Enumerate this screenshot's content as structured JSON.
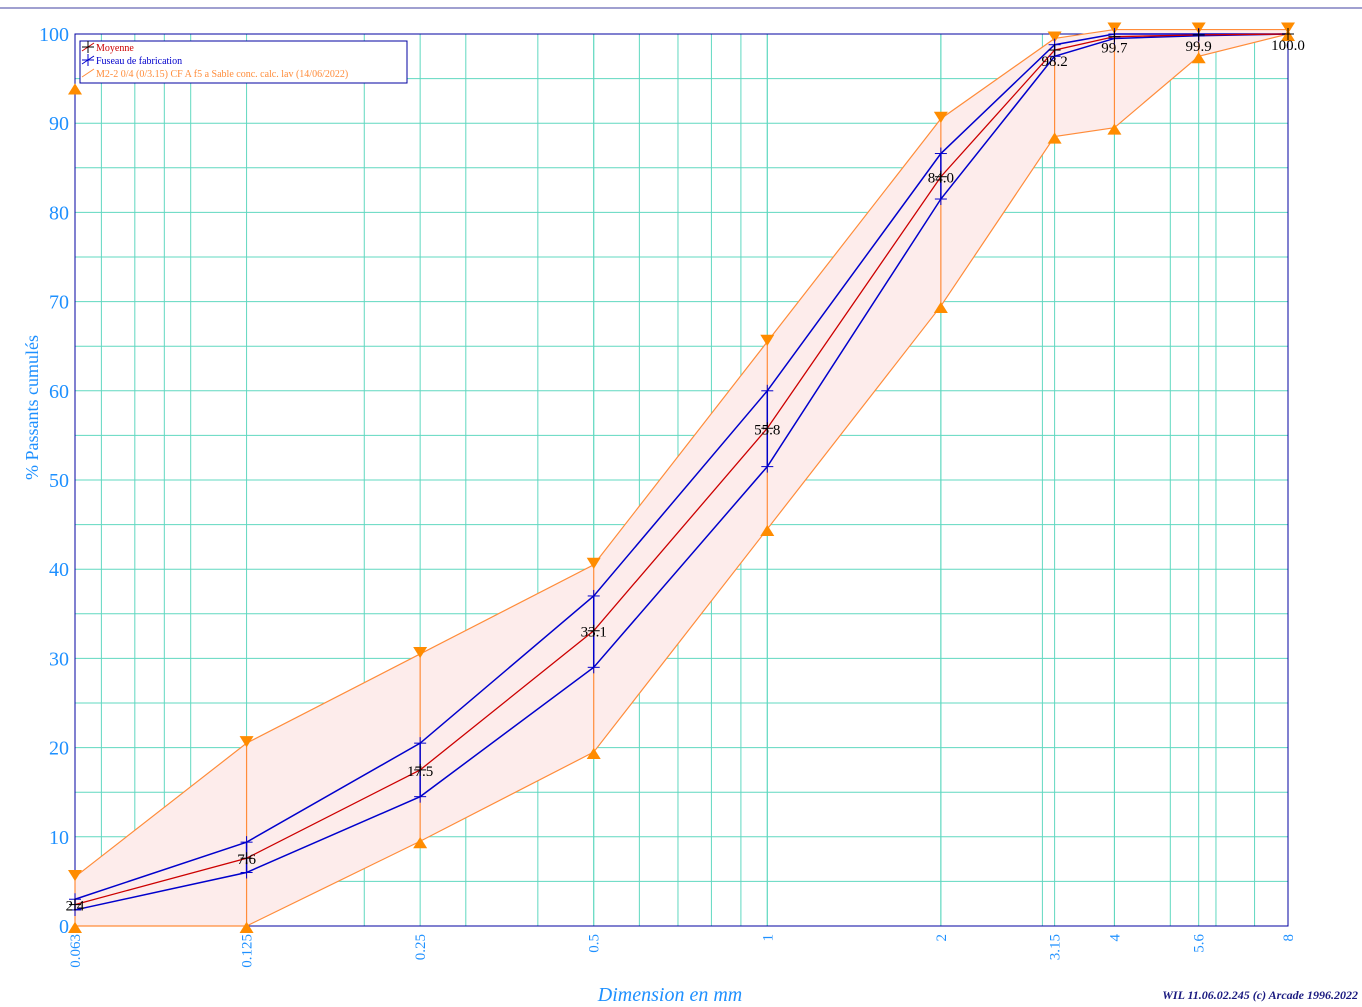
{
  "chart_data": {
    "type": "line",
    "xlabel": "Dimension en mm",
    "ylabel": "% Passants cumulés",
    "x_scale": "log",
    "ylim": [
      0,
      100
    ],
    "yticks": [
      0,
      10,
      20,
      30,
      40,
      50,
      60,
      70,
      80,
      90,
      100
    ],
    "x": [
      0.063,
      0.125,
      0.25,
      0.5,
      1,
      2,
      3.15,
      4,
      5.6,
      8
    ],
    "x_tick_labels": [
      "0.063",
      "0.125",
      "0.25",
      "0.5",
      "1",
      "2",
      "3.15",
      "4",
      "5.6",
      "8"
    ],
    "grid": true,
    "legend_position": "top-left",
    "series": [
      {
        "name": "Moyenne",
        "color": "#cc0000",
        "marker_color": "#000000",
        "values": [
          2.4,
          7.6,
          17.5,
          33.1,
          55.8,
          84.0,
          98.2,
          99.7,
          99.9,
          100.0
        ],
        "data_labels": [
          "2.4",
          "7.6",
          "17.5",
          "33.1",
          "55.8",
          "84.0",
          "98.2",
          "99.7",
          "99.9",
          "100.0"
        ]
      },
      {
        "name": "Fuseau de fabrication",
        "color": "#0000cc",
        "upper": [
          3.0,
          9.4,
          20.5,
          37.0,
          60.0,
          86.6,
          98.8,
          100.0,
          100.0,
          100.0
        ],
        "lower": [
          1.8,
          6.0,
          14.5,
          29.0,
          51.5,
          81.5,
          97.5,
          99.5,
          99.8,
          100.0
        ]
      },
      {
        "name": "M2-2 0/4 (0/3.15) CF A f5 a Sable conc. calc. lav (14/06/2022)",
        "color": "#ff8c3a",
        "fill": "#fdeceb",
        "upper": [
          5.5,
          20.5,
          30.5,
          40.5,
          65.5,
          90.5,
          99.5,
          100.5,
          100.5,
          100.5
        ],
        "lower": [
          0.0,
          0.0,
          9.5,
          19.5,
          44.5,
          69.5,
          88.5,
          89.5,
          97.5,
          100.0
        ],
        "extra_lower_marker": {
          "x": 0.063,
          "y": 94.0
        }
      }
    ],
    "credit": "WIL 11.06.02.245 (c) Arcade 1996.2022"
  }
}
